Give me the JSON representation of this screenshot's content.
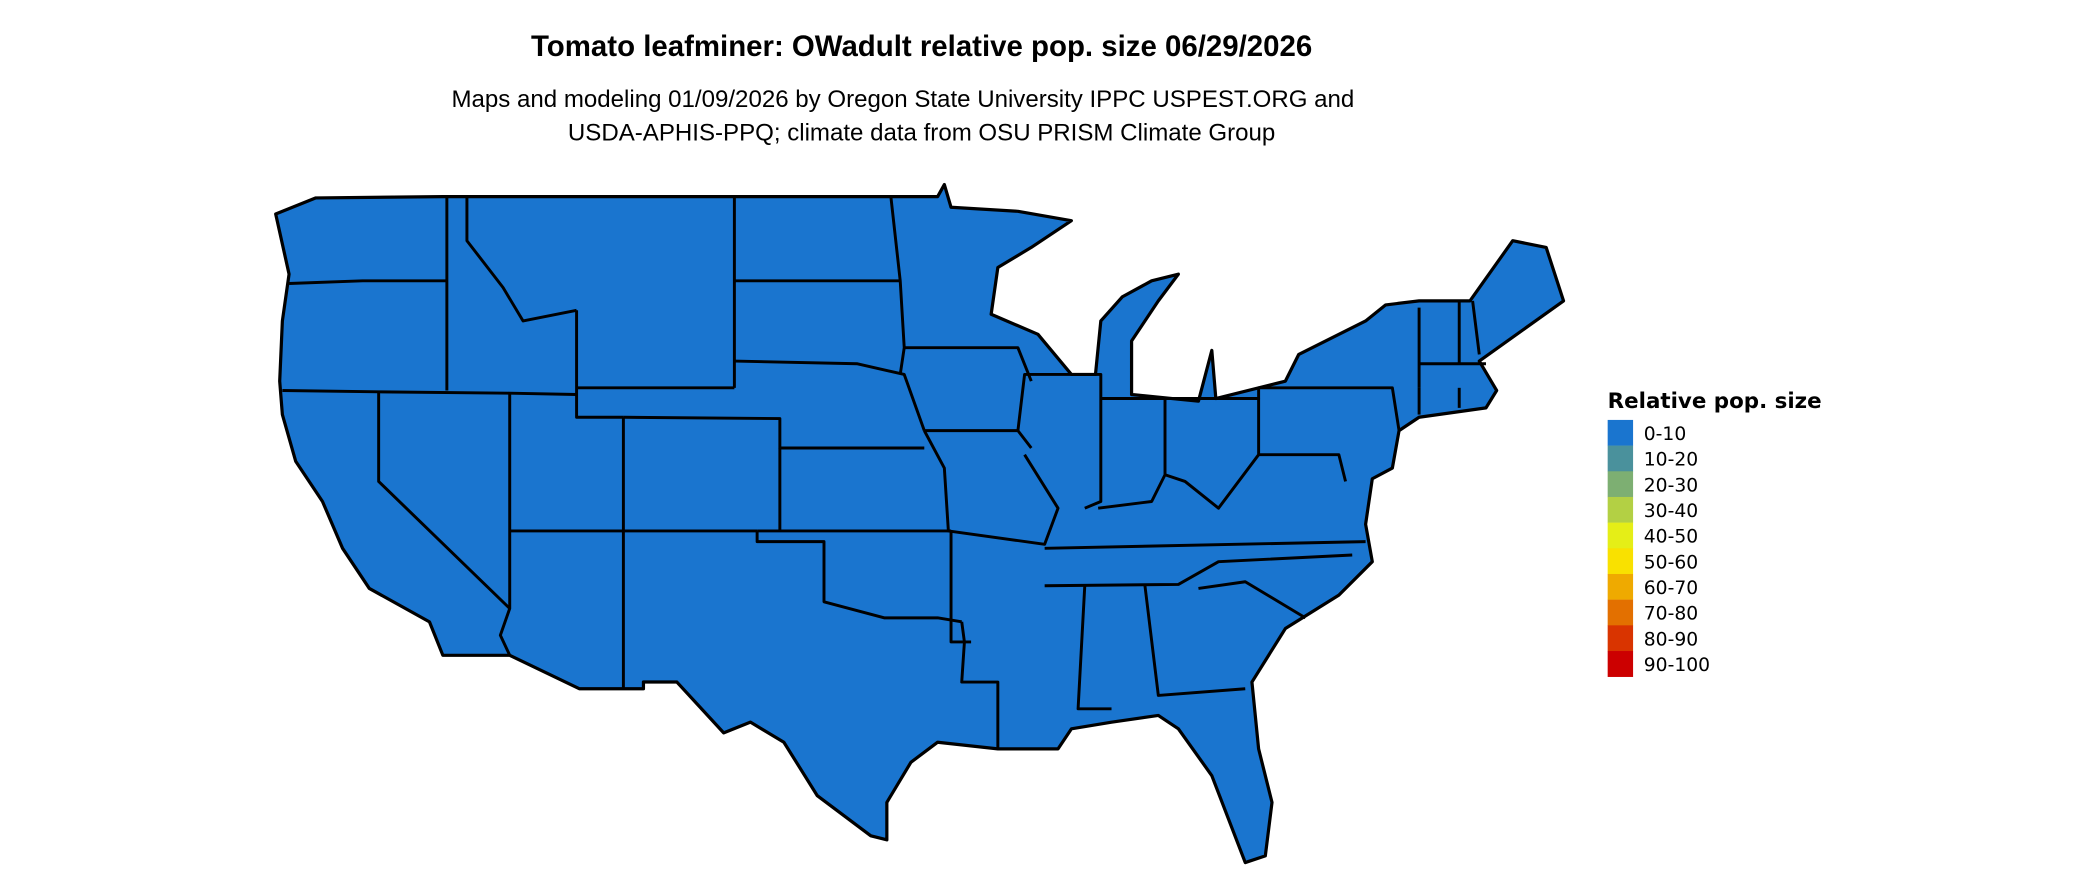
{
  "title": "Tomato leafminer: OWadult relative pop. size 06/29/2026",
  "subtitle_lines": [
    "Maps and modeling 01/09/2026 by Oregon State University IPPC USPEST.ORG and",
    "USDA-APHIS-PPQ; climate data from OSU PRISM Climate Group"
  ],
  "map": {
    "region": "Contiguous United States",
    "fill_color": "#1A75CF",
    "border_color": "#000000"
  },
  "legend": {
    "title": "Relative pop. size",
    "items": [
      {
        "label": "0-10",
        "color": "#1A75CF"
      },
      {
        "label": "10-20",
        "color": "#4A919C"
      },
      {
        "label": "20-30",
        "color": "#7DAF72"
      },
      {
        "label": "30-40",
        "color": "#B3D044"
      },
      {
        "label": "40-50",
        "color": "#E5EE17"
      },
      {
        "label": "50-60",
        "color": "#F9E100"
      },
      {
        "label": "60-70",
        "color": "#EFAA00"
      },
      {
        "label": "70-80",
        "color": "#E37000"
      },
      {
        "label": "80-90",
        "color": "#D93400"
      },
      {
        "label": "90-100",
        "color": "#CC0000"
      }
    ]
  }
}
